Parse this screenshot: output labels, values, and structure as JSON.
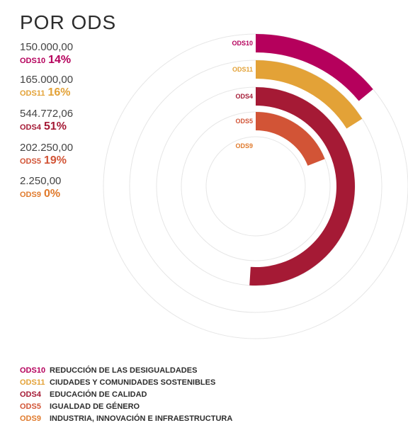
{
  "title": "POR ODS",
  "chart_data": {
    "type": "radial-bar",
    "title": "POR ODS",
    "series": [
      {
        "code": "ODS10",
        "amount": "150.000,00",
        "percent_label": "14%",
        "percent": 14,
        "color": "#b5005c",
        "name": "REDUCCIÓN DE LAS DESIGUALDADES"
      },
      {
        "code": "ODS11",
        "amount": "165.000,00",
        "percent_label": "16%",
        "percent": 16,
        "color": "#e3a237",
        "name": "CIUDADES Y COMUNIDADES SOSTENIBLES"
      },
      {
        "code": "ODS4",
        "amount": "544.772,06",
        "percent_label": "51%",
        "percent": 51,
        "color": "#a51a35",
        "name": "EDUCACIÓN DE CALIDAD"
      },
      {
        "code": "ODS5",
        "amount": "202.250,00",
        "percent_label": "19%",
        "percent": 19,
        "color": "#d25436",
        "name": "IGUALDAD DE GÉNERO"
      },
      {
        "code": "ODS9",
        "amount": "2.250,00",
        "percent_label": "0%",
        "percent": 0,
        "color": "#e07a2c",
        "name": "INDUSTRIA, INNOVACIÓN E INFRAESTRUCTURA"
      }
    ]
  }
}
